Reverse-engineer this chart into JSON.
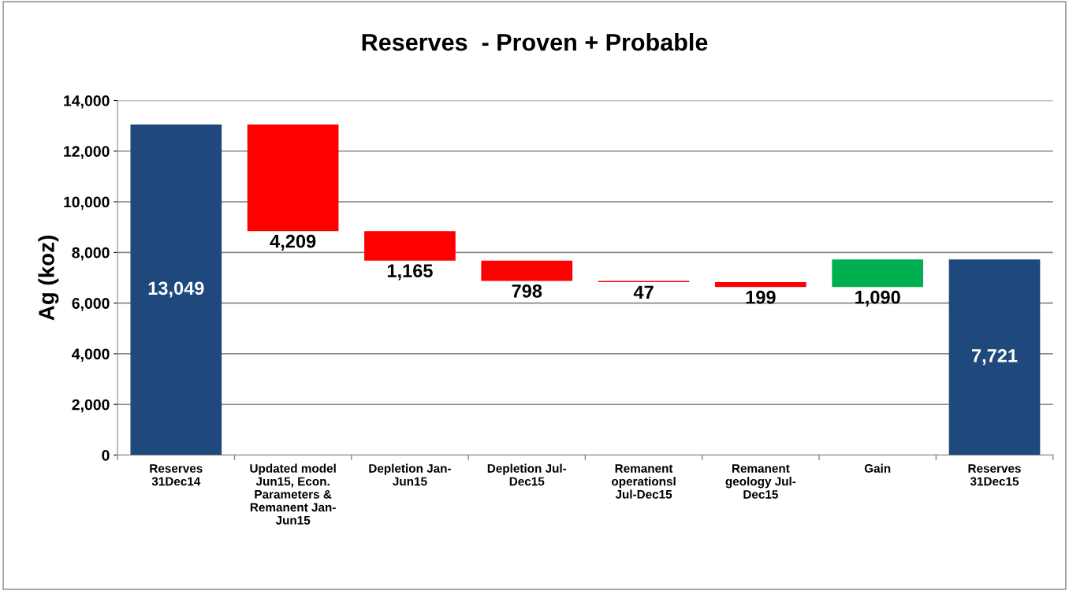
{
  "chart_data": {
    "type": "bar",
    "title": "Reserves  - Proven + Probable",
    "ylabel": "Ag (koz)",
    "categories": [
      "Reserves 31Dec14",
      "Updated model Jun15, Econ. Parameters & Remanent Jan-Jun15",
      "Depletion Jan-Jun15",
      "Depletion Jul-Dec15",
      "Remanent operationsl Jul-Dec15",
      "Remanent geology Jul-Dec15",
      "Gain",
      "Reserves 31Dec15"
    ],
    "values": [
      13049,
      4209,
      1165,
      798,
      47,
      199,
      1090,
      7721
    ],
    "base": [
      0,
      8840,
      7675,
      6877,
      6830,
      6631,
      6631,
      0
    ],
    "colors": [
      "#1f497d",
      "#ff0000",
      "#ff0000",
      "#ff0000",
      "#ff0000",
      "#ff0000",
      "#00b050",
      "#1f497d"
    ],
    "value_labels": [
      "13,049",
      "4,209",
      "1,165",
      "798",
      "47",
      "199",
      "1,090",
      "7,721"
    ],
    "ylim": [
      0,
      14000
    ],
    "yticks": [
      {
        "value": 0,
        "label": "0"
      },
      {
        "value": 2000,
        "label": "2,000"
      },
      {
        "value": 4000,
        "label": "4,000"
      },
      {
        "value": 6000,
        "label": "6,000"
      },
      {
        "value": 8000,
        "label": "8,000"
      },
      {
        "value": 10000,
        "label": "10,000"
      },
      {
        "value": 12000,
        "label": "12,000"
      },
      {
        "value": 14000,
        "label": "14,000"
      }
    ],
    "grid": "y",
    "legend": false
  }
}
